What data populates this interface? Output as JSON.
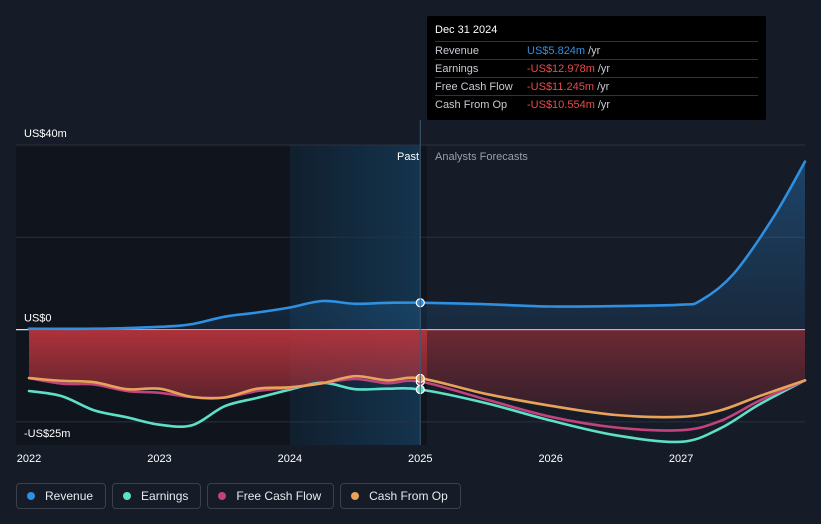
{
  "chart_data": {
    "type": "line",
    "x_domain": [
      2021.9,
      2027.95
    ],
    "x_ticks": [
      {
        "value": 2022,
        "label": "2022"
      },
      {
        "value": 2023,
        "label": "2023"
      },
      {
        "value": 2024,
        "label": "2024"
      },
      {
        "value": 2025,
        "label": "2025"
      },
      {
        "value": 2026,
        "label": "2026"
      },
      {
        "value": 2027,
        "label": "2027"
      }
    ],
    "y_domain": [
      -25,
      40
    ],
    "y_labels": [
      {
        "value": 40,
        "label": "US$40m"
      },
      {
        "value": 0,
        "label": "US$0"
      },
      {
        "value": -25,
        "label": "-US$25m"
      }
    ],
    "gridlines": [
      40,
      20,
      0,
      -20
    ],
    "divider_x": 2025,
    "past_start_x": 2024,
    "past_label": "Past",
    "forecast_label": "Analysts Forecasts",
    "series": [
      {
        "name": "Revenue",
        "color": "#2f8fe0",
        "fill": true,
        "points": [
          [
            2022,
            0.2
          ],
          [
            2022.5,
            0.2
          ],
          [
            2023,
            0.6
          ],
          [
            2023.25,
            1.2
          ],
          [
            2023.5,
            2.8
          ],
          [
            2023.75,
            3.7
          ],
          [
            2024,
            4.8
          ],
          [
            2024.25,
            6.2
          ],
          [
            2024.5,
            5.6
          ],
          [
            2024.75,
            5.8
          ],
          [
            2025,
            5.824
          ],
          [
            2025.5,
            5.5
          ],
          [
            2026,
            5.0
          ],
          [
            2026.5,
            5.1
          ],
          [
            2027,
            5.4
          ],
          [
            2027.15,
            6.3
          ],
          [
            2027.4,
            12
          ],
          [
            2027.7,
            24
          ],
          [
            2027.95,
            36.4
          ]
        ]
      },
      {
        "name": "Earnings",
        "color": "#5ee0c8",
        "fill": false,
        "points": [
          [
            2022,
            -13.3
          ],
          [
            2022.25,
            -14.4
          ],
          [
            2022.5,
            -17.5
          ],
          [
            2022.75,
            -19
          ],
          [
            2023,
            -20.6
          ],
          [
            2023.25,
            -20.7
          ],
          [
            2023.5,
            -16.6
          ],
          [
            2023.75,
            -14.8
          ],
          [
            2024,
            -13
          ],
          [
            2024.25,
            -11.5
          ],
          [
            2024.5,
            -12.9
          ],
          [
            2024.75,
            -12.8
          ],
          [
            2025,
            -12.978
          ],
          [
            2025.5,
            -15.9
          ],
          [
            2026,
            -19.7
          ],
          [
            2026.5,
            -22.9
          ],
          [
            2027,
            -24.3
          ],
          [
            2027.3,
            -21.4
          ],
          [
            2027.6,
            -16.2
          ],
          [
            2027.95,
            -11
          ]
        ]
      },
      {
        "name": "Free Cash Flow",
        "color": "#c2437c",
        "fill": false,
        "points": [
          [
            2022,
            -10.5
          ],
          [
            2022.25,
            -11.7
          ],
          [
            2022.5,
            -11.9
          ],
          [
            2022.75,
            -13.3
          ],
          [
            2023,
            -13.7
          ],
          [
            2023.25,
            -14.6
          ],
          [
            2023.5,
            -14.7
          ],
          [
            2023.75,
            -13.3
          ],
          [
            2024,
            -12.6
          ],
          [
            2024.25,
            -11.6
          ],
          [
            2024.5,
            -10.7
          ],
          [
            2024.75,
            -11.6
          ],
          [
            2025,
            -11.245
          ],
          [
            2025.5,
            -15.1
          ],
          [
            2026,
            -18.9
          ],
          [
            2026.5,
            -21.2
          ],
          [
            2027,
            -21.8
          ],
          [
            2027.3,
            -19.8
          ],
          [
            2027.6,
            -15.4
          ],
          [
            2027.95,
            -11
          ]
        ]
      },
      {
        "name": "Cash From Op",
        "color": "#e8a35a",
        "fill": false,
        "points": [
          [
            2022,
            -10.5
          ],
          [
            2022.25,
            -11.1
          ],
          [
            2022.5,
            -11.4
          ],
          [
            2022.75,
            -12.9
          ],
          [
            2023,
            -12.8
          ],
          [
            2023.25,
            -14.6
          ],
          [
            2023.5,
            -14.7
          ],
          [
            2023.75,
            -12.8
          ],
          [
            2024,
            -12.5
          ],
          [
            2024.25,
            -11.6
          ],
          [
            2024.5,
            -10.1
          ],
          [
            2024.75,
            -11
          ],
          [
            2025,
            -10.554
          ],
          [
            2025.5,
            -13.9
          ],
          [
            2026,
            -16.5
          ],
          [
            2026.5,
            -18.5
          ],
          [
            2027,
            -18.9
          ],
          [
            2027.3,
            -17.5
          ],
          [
            2027.6,
            -14.4
          ],
          [
            2027.95,
            -11
          ]
        ]
      }
    ],
    "neg_fill_color": "#b6343d"
  },
  "tooltip": {
    "date": "Dec 31 2024",
    "rows": [
      {
        "label": "Revenue",
        "value": "US$5.824m",
        "unit": "/yr",
        "color": "#2f8fe0"
      },
      {
        "label": "Earnings",
        "value": "-US$12.978m",
        "unit": "/yr",
        "color": "#e94b4b"
      },
      {
        "label": "Free Cash Flow",
        "value": "-US$11.245m",
        "unit": "/yr",
        "color": "#e94b4b"
      },
      {
        "label": "Cash From Op",
        "value": "-US$10.554m",
        "unit": "/yr",
        "color": "#e94b4b"
      }
    ]
  },
  "legend": [
    {
      "label": "Revenue",
      "color": "#2f8fe0"
    },
    {
      "label": "Earnings",
      "color": "#5ee0c8"
    },
    {
      "label": "Free Cash Flow",
      "color": "#c2437c"
    },
    {
      "label": "Cash From Op",
      "color": "#e8a35a"
    }
  ]
}
